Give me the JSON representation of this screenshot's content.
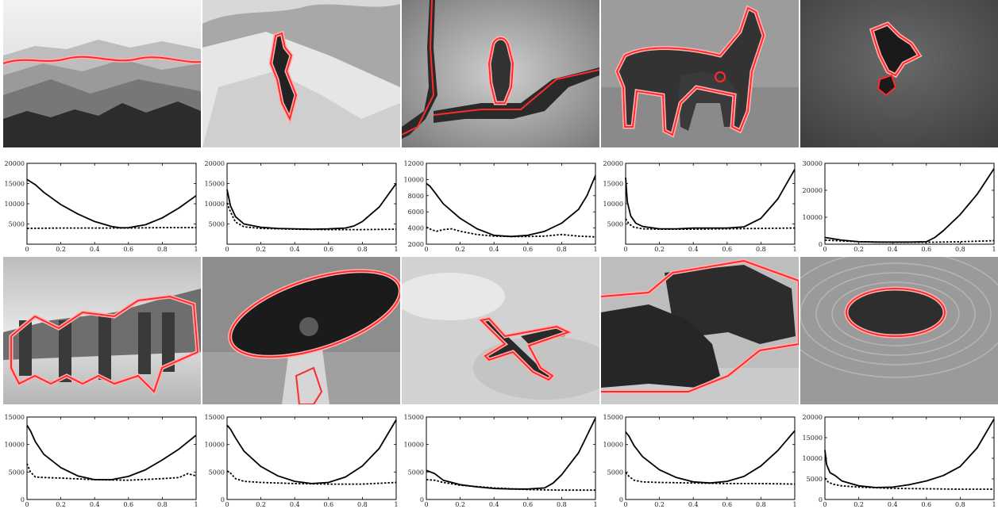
{
  "colors": {
    "contour": "#ff2a2a",
    "contour_glow": "#ffb3b3",
    "curve": "#000000"
  },
  "photos": [
    {
      "subject": "mountains",
      "subject_icon": "mountain-ridge-icon"
    },
    {
      "subject": "skier",
      "subject_icon": "skier-icon"
    },
    {
      "subject": "bird on branch",
      "subject_icon": "bird-icon"
    },
    {
      "subject": "horse and foal",
      "subject_icon": "horse-icon"
    },
    {
      "subject": "hands",
      "subject_icon": "hand-icon"
    },
    {
      "subject": "pilots and jet",
      "subject_icon": "people-icon"
    },
    {
      "subject": "child with hat",
      "subject_icon": "hat-icon"
    },
    {
      "subject": "airplane",
      "subject_icon": "airplane-icon"
    },
    {
      "subject": "bison",
      "subject_icon": "bison-icon"
    },
    {
      "subject": "stone garden",
      "subject_icon": "stone-circle-icon"
    }
  ],
  "chart_data": [
    {
      "type": "line",
      "xlim": [
        0,
        1
      ],
      "ylim": [
        0,
        20000
      ],
      "xticks": [
        "0",
        "0.2",
        "0.4",
        "0.6",
        "0.8",
        "1"
      ],
      "yticks": [
        {
          "v": 5000,
          "label": "5000"
        },
        {
          "v": 10000,
          "label": "10000"
        },
        {
          "v": 15000,
          "label": "15000"
        },
        {
          "v": 20000,
          "label": "20000"
        }
      ],
      "series": [
        {
          "style": "solid",
          "x": [
            0,
            0.05,
            0.1,
            0.2,
            0.3,
            0.4,
            0.5,
            0.55,
            0.6,
            0.7,
            0.8,
            0.9,
            1.0
          ],
          "values": [
            16000,
            14700,
            12800,
            9800,
            7500,
            5600,
            4400,
            4050,
            4100,
            4800,
            6500,
            9000,
            12000
          ]
        },
        {
          "style": "dotted",
          "x": [
            0,
            0.2,
            0.4,
            0.6,
            0.8,
            1.0
          ],
          "values": [
            3900,
            4000,
            4000,
            4000,
            4100,
            4100
          ]
        }
      ]
    },
    {
      "type": "line",
      "xlim": [
        0,
        1
      ],
      "ylim": [
        0,
        20000
      ],
      "xticks": [
        "0",
        "0.2",
        "0.4",
        "0.6",
        "0.8",
        "1"
      ],
      "yticks": [
        {
          "v": 5000,
          "label": "5000"
        },
        {
          "v": 10000,
          "label": "10000"
        },
        {
          "v": 15000,
          "label": "15000"
        },
        {
          "v": 20000,
          "label": "20000"
        }
      ],
      "series": [
        {
          "style": "solid",
          "x": [
            0,
            0.02,
            0.05,
            0.1,
            0.2,
            0.3,
            0.4,
            0.5,
            0.6,
            0.7,
            0.75,
            0.8,
            0.9,
            1.0
          ],
          "values": [
            13500,
            9500,
            6800,
            5000,
            4200,
            3900,
            3800,
            3700,
            3800,
            4000,
            4500,
            5600,
            9200,
            15000
          ]
        },
        {
          "style": "dotted",
          "x": [
            0,
            0.02,
            0.05,
            0.1,
            0.2,
            0.4,
            0.6,
            0.8,
            1.0
          ],
          "values": [
            10200,
            8000,
            5500,
            4300,
            3900,
            3700,
            3600,
            3600,
            3700
          ]
        }
      ]
    },
    {
      "type": "line",
      "xlim": [
        0,
        1
      ],
      "ylim": [
        2000,
        12000
      ],
      "xticks": [
        "0",
        "0.2",
        "0.4",
        "0.6",
        "0.8",
        "1"
      ],
      "yticks": [
        {
          "v": 2000,
          "label": "2000"
        },
        {
          "v": 4000,
          "label": "4000"
        },
        {
          "v": 6000,
          "label": "6000"
        },
        {
          "v": 8000,
          "label": "8000"
        },
        {
          "v": 10000,
          "label": "10000"
        },
        {
          "v": 12000,
          "label": "12000"
        }
      ],
      "series": [
        {
          "style": "solid",
          "x": [
            0,
            0.02,
            0.05,
            0.1,
            0.2,
            0.3,
            0.4,
            0.5,
            0.6,
            0.7,
            0.8,
            0.9,
            0.95,
            1.0
          ],
          "values": [
            9500,
            9200,
            8400,
            7000,
            5200,
            3900,
            3100,
            2950,
            3100,
            3600,
            4600,
            6300,
            8000,
            10500
          ]
        },
        {
          "style": "dotted",
          "x": [
            0,
            0.03,
            0.06,
            0.1,
            0.15,
            0.2,
            0.3,
            0.4,
            0.5,
            0.6,
            0.7,
            0.8,
            0.9,
            1.0
          ],
          "values": [
            4100,
            3800,
            3600,
            3800,
            3900,
            3600,
            3200,
            3000,
            2950,
            2950,
            3000,
            3200,
            3000,
            2900
          ]
        }
      ]
    },
    {
      "type": "line",
      "xlim": [
        0,
        1
      ],
      "ylim": [
        0,
        20000
      ],
      "xticks": [
        "0",
        "0.2",
        "0.4",
        "0.6",
        "0.8",
        "1"
      ],
      "yticks": [
        {
          "v": 5000,
          "label": "5000"
        },
        {
          "v": 10000,
          "label": "10000"
        },
        {
          "v": 15000,
          "label": "15000"
        },
        {
          "v": 20000,
          "label": "20000"
        }
      ],
      "series": [
        {
          "style": "solid",
          "x": [
            0,
            0.01,
            0.03,
            0.06,
            0.1,
            0.2,
            0.3,
            0.4,
            0.5,
            0.6,
            0.7,
            0.8,
            0.9,
            1.0
          ],
          "values": [
            16500,
            10500,
            7000,
            5200,
            4400,
            3800,
            3800,
            4000,
            4000,
            4000,
            4300,
            6400,
            11200,
            18500
          ]
        },
        {
          "style": "dotted",
          "x": [
            0,
            0.02,
            0.05,
            0.1,
            0.2,
            0.4,
            0.6,
            0.8,
            1.0
          ],
          "values": [
            6300,
            5000,
            4200,
            3800,
            3700,
            3700,
            3800,
            3900,
            4000
          ]
        }
      ]
    },
    {
      "type": "line",
      "xlim": [
        0,
        1
      ],
      "ylim": [
        0,
        30000
      ],
      "xticks": [
        "0",
        "0.2",
        "0.4",
        "0.6",
        "0.8",
        "1"
      ],
      "yticks": [
        {
          "v": 0,
          "label": "0"
        },
        {
          "v": 10000,
          "label": "10000"
        },
        {
          "v": 20000,
          "label": "20000"
        },
        {
          "v": 30000,
          "label": "30000"
        }
      ],
      "series": [
        {
          "style": "solid",
          "x": [
            0,
            0.1,
            0.2,
            0.3,
            0.4,
            0.5,
            0.6,
            0.65,
            0.7,
            0.8,
            0.9,
            1.0
          ],
          "values": [
            2500,
            1500,
            900,
            800,
            800,
            800,
            900,
            2500,
            5000,
            11000,
            18500,
            28000
          ]
        },
        {
          "style": "dotted",
          "x": [
            0,
            0.2,
            0.4,
            0.6,
            0.8,
            1.0
          ],
          "values": [
            1500,
            900,
            700,
            700,
            900,
            1300
          ]
        }
      ]
    },
    {
      "type": "line",
      "xlim": [
        0,
        1
      ],
      "ylim": [
        0,
        15000
      ],
      "xticks": [
        "0",
        "0.2",
        "0.4",
        "0.6",
        "0.8",
        "1"
      ],
      "yticks": [
        {
          "v": 0,
          "label": "0"
        },
        {
          "v": 5000,
          "label": "5000"
        },
        {
          "v": 10000,
          "label": "10000"
        },
        {
          "v": 15000,
          "label": "15000"
        }
      ],
      "series": [
        {
          "style": "solid",
          "x": [
            0,
            0.02,
            0.05,
            0.1,
            0.2,
            0.3,
            0.4,
            0.5,
            0.6,
            0.7,
            0.8,
            0.9,
            1.0
          ],
          "values": [
            13500,
            12500,
            10500,
            8200,
            5800,
            4300,
            3600,
            3600,
            4200,
            5400,
            7200,
            9200,
            11700
          ]
        },
        {
          "style": "dotted",
          "x": [
            0,
            0.02,
            0.05,
            0.1,
            0.2,
            0.4,
            0.6,
            0.8,
            0.9,
            0.95,
            1.0
          ],
          "values": [
            6500,
            5000,
            4100,
            4000,
            3900,
            3600,
            3500,
            3800,
            4000,
            4700,
            4300
          ]
        }
      ]
    },
    {
      "type": "line",
      "xlim": [
        0,
        1
      ],
      "ylim": [
        0,
        15000
      ],
      "xticks": [
        "0",
        "0.2",
        "0.4",
        "0.6",
        "0.8",
        "1"
      ],
      "yticks": [
        {
          "v": 0,
          "label": "0"
        },
        {
          "v": 5000,
          "label": "5000"
        },
        {
          "v": 10000,
          "label": "10000"
        },
        {
          "v": 15000,
          "label": "15000"
        }
      ],
      "series": [
        {
          "style": "solid",
          "x": [
            0,
            0.02,
            0.05,
            0.1,
            0.2,
            0.3,
            0.4,
            0.5,
            0.6,
            0.7,
            0.8,
            0.9,
            1.0
          ],
          "values": [
            13500,
            12800,
            11200,
            8800,
            6000,
            4300,
            3300,
            2900,
            3100,
            4100,
            6100,
            9300,
            14500
          ]
        },
        {
          "style": "dotted",
          "x": [
            0,
            0.02,
            0.05,
            0.1,
            0.2,
            0.4,
            0.6,
            0.8,
            1.0
          ],
          "values": [
            5200,
            4800,
            3800,
            3300,
            3100,
            2900,
            2800,
            2800,
            3100
          ]
        }
      ]
    },
    {
      "type": "line",
      "xlim": [
        0,
        1
      ],
      "ylim": [
        0,
        15000
      ],
      "xticks": [
        "0",
        "0.2",
        "0.4",
        "0.6",
        "0.8",
        "1"
      ],
      "yticks": [
        {
          "v": 0,
          "label": "0"
        },
        {
          "v": 5000,
          "label": "5000"
        },
        {
          "v": 10000,
          "label": "10000"
        },
        {
          "v": 15000,
          "label": "15000"
        }
      ],
      "series": [
        {
          "style": "solid",
          "x": [
            0,
            0.05,
            0.1,
            0.2,
            0.3,
            0.4,
            0.5,
            0.6,
            0.7,
            0.75,
            0.8,
            0.9,
            1.0
          ],
          "values": [
            5300,
            4700,
            3500,
            2700,
            2300,
            2000,
            1900,
            1900,
            2100,
            3000,
            4500,
            8500,
            14800
          ]
        },
        {
          "style": "dotted",
          "x": [
            0,
            0.05,
            0.1,
            0.2,
            0.4,
            0.6,
            0.8,
            1.0
          ],
          "values": [
            3600,
            3500,
            3100,
            2600,
            2100,
            1800,
            1700,
            1700
          ]
        }
      ]
    },
    {
      "type": "line",
      "xlim": [
        0,
        1
      ],
      "ylim": [
        0,
        15000
      ],
      "xticks": [
        "0",
        "0.2",
        "0.4",
        "0.6",
        "0.8",
        "1"
      ],
      "yticks": [
        {
          "v": 0,
          "label": "0"
        },
        {
          "v": 5000,
          "label": "5000"
        },
        {
          "v": 10000,
          "label": "10000"
        },
        {
          "v": 15000,
          "label": "15000"
        }
      ],
      "series": [
        {
          "style": "solid",
          "x": [
            0,
            0.02,
            0.05,
            0.1,
            0.2,
            0.3,
            0.4,
            0.5,
            0.6,
            0.7,
            0.8,
            0.9,
            1.0
          ],
          "values": [
            12300,
            11500,
            9800,
            7800,
            5400,
            4000,
            3200,
            3000,
            3300,
            4200,
            6100,
            8900,
            12500
          ]
        },
        {
          "style": "dotted",
          "x": [
            0,
            0.02,
            0.05,
            0.1,
            0.2,
            0.4,
            0.6,
            0.8,
            1.0
          ],
          "values": [
            4900,
            4200,
            3500,
            3200,
            3100,
            3000,
            2900,
            2900,
            2800
          ]
        }
      ]
    },
    {
      "type": "line",
      "xlim": [
        0,
        1
      ],
      "ylim": [
        0,
        20000
      ],
      "xticks": [
        "0",
        "0.2",
        "0.4",
        "0.6",
        "0.8",
        "1"
      ],
      "yticks": [
        {
          "v": 0,
          "label": "0"
        },
        {
          "v": 5000,
          "label": "5000"
        },
        {
          "v": 10000,
          "label": "10000"
        },
        {
          "v": 15000,
          "label": "15000"
        },
        {
          "v": 20000,
          "label": "20000"
        }
      ],
      "series": [
        {
          "style": "solid",
          "x": [
            0,
            0.01,
            0.03,
            0.06,
            0.1,
            0.2,
            0.3,
            0.4,
            0.5,
            0.6,
            0.7,
            0.8,
            0.9,
            1.0
          ],
          "values": [
            12000,
            8500,
            6500,
            5800,
            4500,
            3300,
            2900,
            3000,
            3600,
            4500,
            5800,
            8000,
            12500,
            19500
          ]
        },
        {
          "style": "dotted",
          "x": [
            0,
            0.02,
            0.05,
            0.1,
            0.2,
            0.4,
            0.6,
            0.8,
            1.0
          ],
          "values": [
            5200,
            4200,
            3700,
            3300,
            3000,
            2700,
            2600,
            2500,
            2500
          ]
        }
      ]
    }
  ]
}
